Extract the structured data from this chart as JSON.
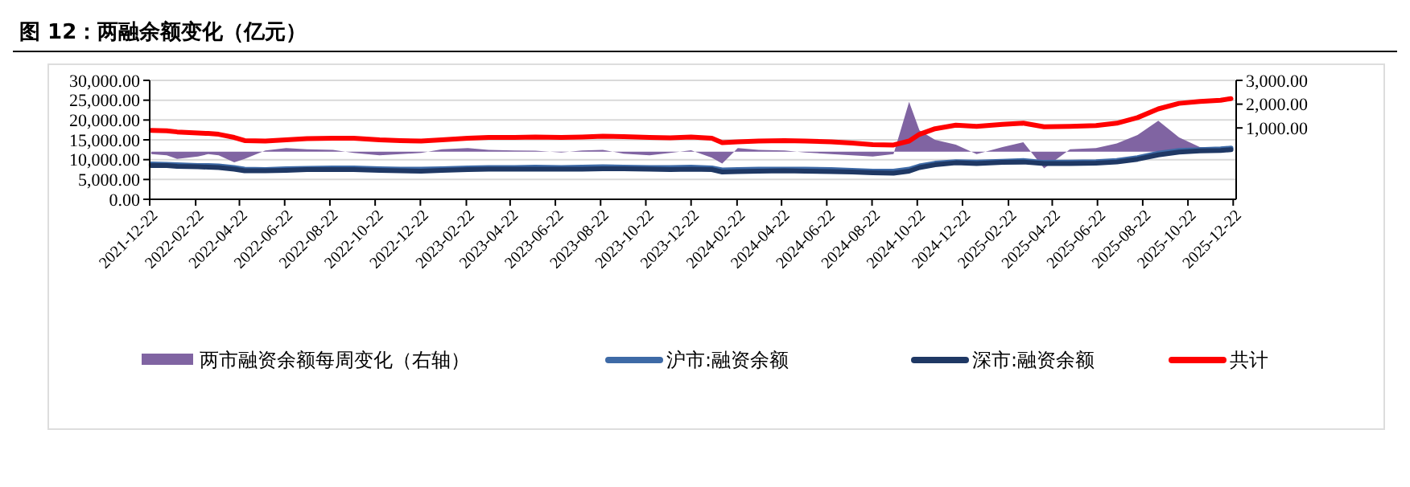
{
  "chart_data": {
    "type": "line",
    "title": "图 12：两融余额变化（亿元）",
    "x": [
      "2021-12-24",
      "2022-01-14",
      "2022-01-28",
      "2022-02-25",
      "2022-03-11",
      "2022-03-25",
      "2022-04-15",
      "2022-04-29",
      "2022-05-27",
      "2022-06-24",
      "2022-07-22",
      "2022-08-26",
      "2022-09-23",
      "2022-10-28",
      "2022-11-25",
      "2022-12-23",
      "2023-01-20",
      "2023-02-24",
      "2023-03-24",
      "2023-04-28",
      "2023-05-26",
      "2023-06-30",
      "2023-07-28",
      "2023-08-25",
      "2023-09-22",
      "2023-10-27",
      "2023-11-24",
      "2023-12-22",
      "2024-01-19",
      "2024-02-02",
      "2024-02-23",
      "2024-03-22",
      "2024-04-26",
      "2024-05-24",
      "2024-06-28",
      "2024-07-26",
      "2024-08-23",
      "2024-09-20",
      "2024-10-11",
      "2024-10-25",
      "2024-11-15",
      "2024-12-13",
      "2025-01-10",
      "2025-02-14",
      "2025-03-14",
      "2025-04-11",
      "2025-05-16",
      "2025-06-20",
      "2025-07-18",
      "2025-08-15",
      "2025-09-12",
      "2025-10-10",
      "2025-11-07",
      "2025-12-05",
      "2025-12-19"
    ],
    "series": [
      {
        "name": "两市融资余额每周变化（右轴）",
        "type": "area",
        "axis": "y2",
        "color": "#8064a2",
        "values": [
          -100,
          -150,
          -300,
          -200,
          -100,
          -150,
          -450,
          -300,
          50,
          150,
          100,
          80,
          -50,
          -150,
          -100,
          -50,
          100,
          150,
          80,
          50,
          40,
          -30,
          50,
          80,
          -80,
          -150,
          -50,
          60,
          -250,
          -500,
          150,
          80,
          50,
          -30,
          -100,
          -150,
          -200,
          -100,
          2100,
          900,
          500,
          300,
          -100,
          200,
          400,
          -700,
          100,
          150,
          350,
          700,
          1300,
          600,
          200,
          150,
          100
        ]
      },
      {
        "name": "沪市:融资余额",
        "color": "#3e6aa6",
        "values": [
          8900,
          8800,
          8700,
          8500,
          8500,
          8400,
          8000,
          7600,
          7500,
          7700,
          7800,
          7900,
          7900,
          7700,
          7600,
          7600,
          7700,
          7900,
          8000,
          8000,
          8100,
          8000,
          8100,
          8200,
          8100,
          8000,
          8000,
          8100,
          7900,
          7400,
          7500,
          7600,
          7600,
          7600,
          7500,
          7300,
          7100,
          7100,
          7600,
          8400,
          9100,
          9500,
          9400,
          9600,
          9800,
          9300,
          9400,
          9500,
          9800,
          10500,
          11600,
          12300,
          12500,
          12700,
          12900
        ]
      },
      {
        "name": "深市:融资余额",
        "color": "#1f3864",
        "values": [
          8500,
          8500,
          8300,
          8200,
          8100,
          8000,
          7600,
          7200,
          7200,
          7300,
          7500,
          7500,
          7500,
          7300,
          7200,
          7100,
          7300,
          7500,
          7600,
          7600,
          7600,
          7600,
          7600,
          7700,
          7700,
          7600,
          7500,
          7600,
          7500,
          6900,
          7000,
          7100,
          7200,
          7100,
          7000,
          6900,
          6700,
          6600,
          7100,
          8000,
          8700,
          9200,
          9000,
          9300,
          9400,
          9000,
          9000,
          9100,
          9400,
          10100,
          11200,
          11900,
          12200,
          12300,
          12500
        ]
      },
      {
        "name": "共计",
        "color": "#ff0000",
        "values": [
          17400,
          17300,
          17000,
          16700,
          16600,
          16400,
          15600,
          14800,
          14700,
          15000,
          15300,
          15400,
          15400,
          15000,
          14800,
          14700,
          15000,
          15400,
          15600,
          15600,
          15700,
          15600,
          15700,
          15900,
          15800,
          15600,
          15500,
          15700,
          15400,
          14300,
          14500,
          14700,
          14800,
          14700,
          14500,
          14200,
          13800,
          13700,
          14700,
          16400,
          17800,
          18700,
          18400,
          18900,
          19200,
          18300,
          18400,
          18600,
          19200,
          20600,
          22800,
          24200,
          24700,
          25000,
          25400
        ]
      }
    ],
    "xlim": [
      "2021-12-22",
      "2025-12-26"
    ],
    "xticks": [
      "2021-12-22",
      "2022-02-22",
      "2022-04-22",
      "2022-06-22",
      "2022-08-22",
      "2022-10-22",
      "2022-12-22",
      "2023-02-22",
      "2023-04-22",
      "2023-06-22",
      "2023-08-22",
      "2023-10-22",
      "2023-12-22",
      "2024-02-22",
      "2024-04-22",
      "2024-06-22",
      "2024-08-22",
      "2024-10-22",
      "2024-12-22",
      "2025-02-22",
      "2025-04-22",
      "2025-06-22",
      "2025-08-22",
      "2025-10-22",
      "2025-12-22"
    ],
    "ylim": [
      0,
      30000
    ],
    "yticks": [
      {
        "value": 0,
        "label": "0.00"
      },
      {
        "value": 5000,
        "label": "5,000.00"
      },
      {
        "value": 10000,
        "label": "10,000.00"
      },
      {
        "value": 15000,
        "label": "15,000.00"
      },
      {
        "value": 20000,
        "label": "20,000.00"
      },
      {
        "value": 25000,
        "label": "25,000.00"
      },
      {
        "value": 30000,
        "label": "30,000.00"
      }
    ],
    "y2lim": [
      -2000,
      3000
    ],
    "y2ticks": [
      {
        "value": 1000,
        "label": "1,000.00"
      },
      {
        "value": 2000,
        "label": "2,000.00"
      },
      {
        "value": 3000,
        "label": "3,000.00"
      }
    ],
    "grid": "y",
    "legend": "bottom",
    "line_style": "solid",
    "marker": "none"
  }
}
